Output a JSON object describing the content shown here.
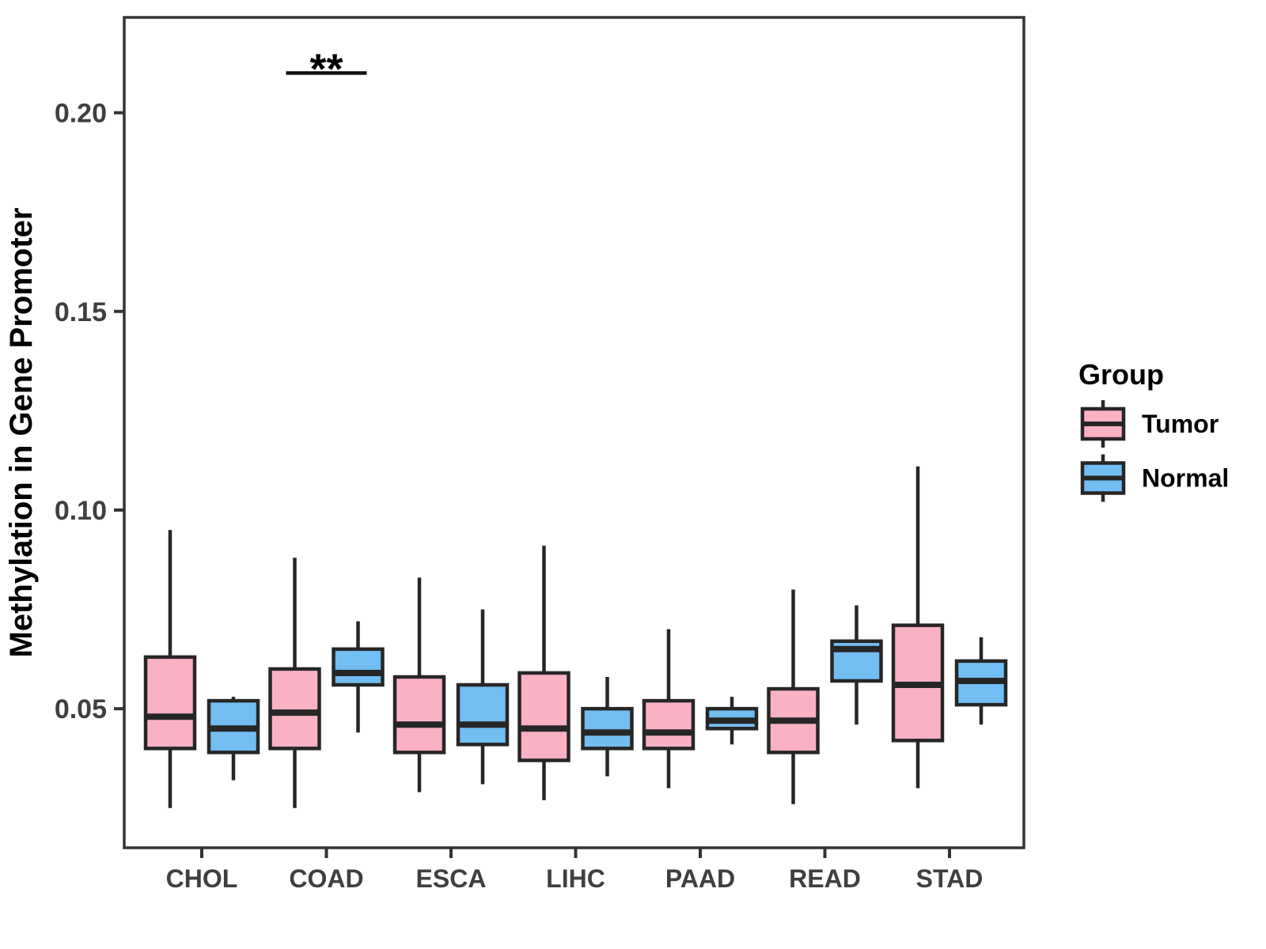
{
  "chart_data": {
    "type": "grouped_boxplot",
    "title": "",
    "xlabel": "",
    "ylabel": "Methylation in Gene Promoter",
    "categories": [
      "CHOL",
      "COAD",
      "ESCA",
      "LIHC",
      "PAAD",
      "READ",
      "STAD"
    ],
    "y_ticks": [
      0.05,
      0.1,
      0.15,
      0.2
    ],
    "y_tick_labels": [
      "0.05",
      "0.10",
      "0.15",
      "0.20"
    ],
    "ylim": [
      0.015,
      0.224
    ],
    "grid": false,
    "legend_title": "Group",
    "legend_position": "right",
    "colors": {
      "tumor_fill": "#FBB1C4",
      "normal_fill": "#72BDF2",
      "box_stroke": "#262626",
      "panel_border": "#333333",
      "axis_text": "#3F3F3F"
    },
    "significance": [
      {
        "category": "COAD",
        "label": "**",
        "y": 0.21
      }
    ],
    "series": [
      {
        "name": "Tumor",
        "fill": "#FBB1C4",
        "boxes": [
          {
            "category": "CHOL",
            "min": 0.025,
            "q1": 0.04,
            "median": 0.048,
            "q3": 0.063,
            "max": 0.095
          },
          {
            "category": "COAD",
            "min": 0.025,
            "q1": 0.04,
            "median": 0.049,
            "q3": 0.06,
            "max": 0.088
          },
          {
            "category": "ESCA",
            "min": 0.029,
            "q1": 0.039,
            "median": 0.046,
            "q3": 0.058,
            "max": 0.083
          },
          {
            "category": "LIHC",
            "min": 0.027,
            "q1": 0.037,
            "median": 0.045,
            "q3": 0.059,
            "max": 0.091
          },
          {
            "category": "PAAD",
            "min": 0.03,
            "q1": 0.04,
            "median": 0.044,
            "q3": 0.052,
            "max": 0.07
          },
          {
            "category": "READ",
            "min": 0.026,
            "q1": 0.039,
            "median": 0.047,
            "q3": 0.055,
            "max": 0.08
          },
          {
            "category": "STAD",
            "min": 0.03,
            "q1": 0.042,
            "median": 0.056,
            "q3": 0.071,
            "max": 0.111
          }
        ]
      },
      {
        "name": "Normal",
        "fill": "#72BDF2",
        "boxes": [
          {
            "category": "CHOL",
            "min": 0.032,
            "q1": 0.039,
            "median": 0.045,
            "q3": 0.052,
            "max": 0.053
          },
          {
            "category": "COAD",
            "min": 0.044,
            "q1": 0.056,
            "median": 0.059,
            "q3": 0.065,
            "max": 0.072
          },
          {
            "category": "ESCA",
            "min": 0.031,
            "q1": 0.041,
            "median": 0.046,
            "q3": 0.056,
            "max": 0.075
          },
          {
            "category": "LIHC",
            "min": 0.033,
            "q1": 0.04,
            "median": 0.044,
            "q3": 0.05,
            "max": 0.058
          },
          {
            "category": "PAAD",
            "min": 0.041,
            "q1": 0.045,
            "median": 0.047,
            "q3": 0.05,
            "max": 0.053
          },
          {
            "category": "READ",
            "min": 0.046,
            "q1": 0.057,
            "median": 0.065,
            "q3": 0.067,
            "max": 0.076
          },
          {
            "category": "STAD",
            "min": 0.046,
            "q1": 0.051,
            "median": 0.057,
            "q3": 0.062,
            "max": 0.068
          }
        ]
      }
    ]
  }
}
